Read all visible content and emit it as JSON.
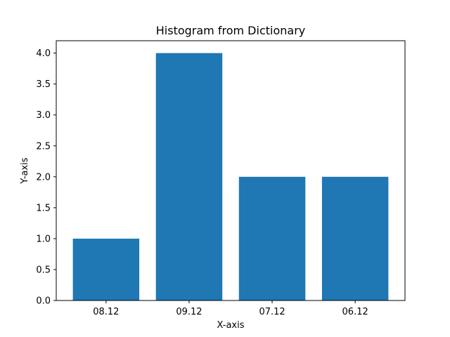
{
  "chart_data": {
    "type": "bar",
    "title": "Histogram from Dictionary",
    "xlabel": "X-axis",
    "ylabel": "Y-axis",
    "categories": [
      "08.12",
      "09.12",
      "07.12",
      "06.12"
    ],
    "values": [
      1,
      4,
      2,
      2
    ],
    "ylim": [
      0,
      4.2
    ],
    "y_ticks": [
      "0.0",
      "0.5",
      "1.0",
      "1.5",
      "2.0",
      "2.5",
      "3.0",
      "3.5",
      "4.0"
    ],
    "bar_color": "#1f77b4",
    "grid": false,
    "legend": "none"
  }
}
